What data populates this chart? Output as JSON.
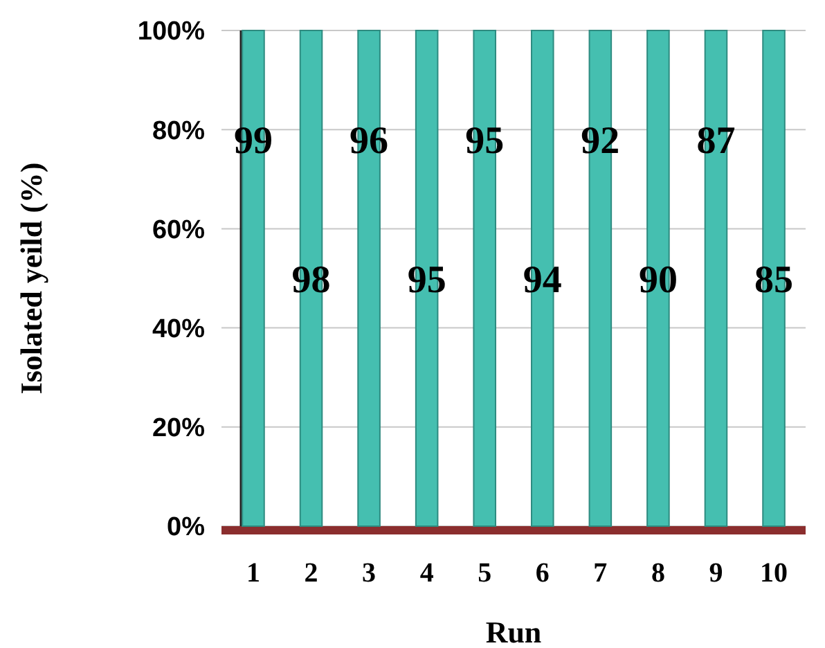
{
  "chart_data": {
    "type": "bar",
    "xlabel": "Run",
    "ylabel": "Isolated yeild (%)",
    "categories": [
      "1",
      "2",
      "3",
      "4",
      "5",
      "6",
      "7",
      "8",
      "9",
      "10"
    ],
    "values": [
      100,
      100,
      100,
      100,
      100,
      100,
      100,
      100,
      100,
      100
    ],
    "annotations": [
      "99",
      "98",
      "96",
      "95",
      "95",
      "94",
      "92",
      "90",
      "87",
      "85"
    ],
    "color": "#45bfb0",
    "ylim": [
      0,
      100
    ],
    "yticks": [
      {
        "value": 0,
        "label": "0%"
      },
      {
        "value": 20,
        "label": "20%"
      },
      {
        "value": 40,
        "label": "40%"
      },
      {
        "value": 60,
        "label": "60%"
      },
      {
        "value": 80,
        "label": "80%"
      },
      {
        "value": 100,
        "label": "100%"
      }
    ],
    "grid": "y"
  }
}
